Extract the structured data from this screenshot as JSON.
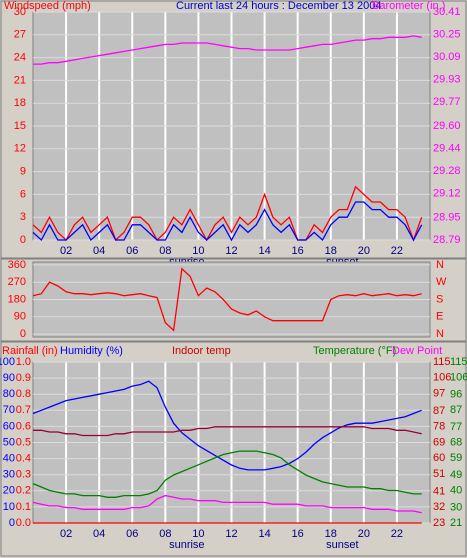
{
  "chart_data": [
    {
      "type": "line",
      "title": "Current last 24 hours : December 13 2004",
      "x": [
        0,
        0.5,
        1,
        1.5,
        2,
        2.5,
        3,
        3.5,
        4,
        4.5,
        5,
        5.5,
        6,
        6.5,
        7,
        7.5,
        8,
        8.5,
        9,
        9.5,
        10,
        10.5,
        11,
        11.5,
        12,
        12.5,
        13,
        13.5,
        14,
        14.5,
        15,
        15.5,
        16,
        16.5,
        17,
        17.5,
        18,
        18.5,
        19,
        19.5,
        20,
        20.5,
        21,
        21.5,
        22,
        22.5,
        23,
        23.5
      ],
      "xlim": [
        0,
        24
      ],
      "xticks": [
        {
          "value": 2,
          "label": "02"
        },
        {
          "value": 4,
          "label": "04"
        },
        {
          "value": 6,
          "label": "06"
        },
        {
          "value": 8,
          "label": "08"
        },
        {
          "value": 10,
          "label": "10"
        },
        {
          "value": 12,
          "label": "12"
        },
        {
          "value": 14,
          "label": "14"
        },
        {
          "value": 16,
          "label": "16"
        },
        {
          "value": 18,
          "label": "18"
        },
        {
          "value": 20,
          "label": "20"
        },
        {
          "value": 22,
          "label": "22"
        }
      ],
      "ylim": [
        0,
        30
      ],
      "yticks": [
        0,
        3,
        6,
        9,
        12,
        15,
        18,
        21,
        24,
        27,
        30
      ],
      "y2lim": [
        28.79,
        30.41
      ],
      "y2ticks": [
        28.79,
        28.95,
        29.12,
        29.28,
        29.44,
        {
          "value": 29.6,
          "label": "29.60"
        },
        29.77,
        29.93,
        30.09,
        30.25,
        30.41
      ],
      "grid": true,
      "annotations": [
        {
          "text": "sunrise",
          "x": 9.3
        },
        {
          "text": "sunset",
          "x": 18.7
        }
      ],
      "series": [
        {
          "name": "Windspeed (mph)",
          "color": "#ff0000",
          "axis": "y",
          "values": [
            2,
            1,
            3,
            1,
            0,
            2,
            3,
            1,
            2,
            3,
            0,
            1,
            3,
            3,
            2,
            0,
            1,
            3,
            2,
            4,
            2,
            0,
            2,
            3,
            1,
            3,
            2,
            3,
            6,
            3,
            2,
            3,
            0,
            0,
            2,
            1,
            3,
            4,
            4,
            7,
            6,
            5,
            5,
            4,
            4,
            3,
            0,
            3
          ]
        },
        {
          "color": "#0000ff",
          "axis": "y",
          "values": [
            1,
            0,
            2,
            0,
            0,
            1,
            2,
            0,
            1,
            2,
            0,
            0,
            2,
            2,
            1,
            0,
            0,
            2,
            1,
            3,
            1,
            0,
            1,
            2,
            0,
            2,
            1,
            2,
            4,
            2,
            1,
            2,
            0,
            0,
            1,
            0,
            2,
            3,
            3,
            5,
            5,
            4,
            4,
            3,
            3,
            2,
            0,
            2
          ]
        },
        {
          "name": "Barometer (in.)",
          "color": "#ff00ff",
          "axis": "y2",
          "values": [
            30.04,
            30.04,
            30.05,
            30.05,
            30.06,
            30.07,
            30.08,
            30.09,
            30.1,
            30.11,
            30.12,
            30.13,
            30.14,
            30.15,
            30.16,
            30.17,
            30.18,
            30.18,
            30.19,
            30.19,
            30.19,
            30.19,
            30.18,
            30.17,
            30.16,
            30.15,
            30.15,
            30.14,
            30.14,
            30.14,
            30.14,
            30.14,
            30.15,
            30.16,
            30.17,
            30.18,
            30.18,
            30.19,
            30.2,
            30.21,
            30.21,
            30.22,
            30.22,
            30.23,
            30.23,
            30.23,
            30.24,
            30.23
          ]
        }
      ]
    },
    {
      "type": "line",
      "x": [
        0,
        0.5,
        1,
        1.5,
        2,
        2.5,
        3,
        3.5,
        4,
        4.5,
        5,
        5.5,
        6,
        6.5,
        7,
        7.5,
        8,
        8.5,
        9,
        9.5,
        10,
        10.5,
        11,
        11.5,
        12,
        12.5,
        13,
        13.5,
        14,
        14.5,
        15,
        15.5,
        16,
        16.5,
        17,
        17.5,
        18,
        18.5,
        19,
        19.5,
        20,
        20.5,
        21,
        21.5,
        22,
        22.5,
        23,
        23.5
      ],
      "xlim": [
        0,
        24
      ],
      "ylim": [
        -15,
        375
      ],
      "yticks": [
        0,
        90,
        180,
        270,
        360
      ],
      "y2lim": [
        -15,
        375
      ],
      "y2ticks": [
        {
          "value": 0,
          "label": "N"
        },
        {
          "value": 90,
          "label": "E"
        },
        {
          "value": 180,
          "label": "S"
        },
        {
          "value": 270,
          "label": "W"
        },
        {
          "value": 360,
          "label": "N"
        }
      ],
      "grid": true,
      "series": [
        {
          "color": "#ff0000",
          "axis": "y",
          "values": [
            200,
            210,
            270,
            250,
            220,
            210,
            210,
            205,
            210,
            215,
            210,
            200,
            205,
            210,
            200,
            190,
            60,
            20,
            340,
            300,
            200,
            240,
            220,
            180,
            130,
            110,
            100,
            120,
            90,
            70,
            70,
            70,
            70,
            70,
            70,
            70,
            180,
            200,
            205,
            200,
            210,
            200,
            205,
            210,
            200,
            205,
            200,
            210
          ]
        }
      ]
    },
    {
      "type": "line",
      "x": [
        0,
        0.5,
        1,
        1.5,
        2,
        2.5,
        3,
        3.5,
        4,
        4.5,
        5,
        5.5,
        6,
        6.5,
        7,
        7.5,
        8,
        8.5,
        9,
        9.5,
        10,
        10.5,
        11,
        11.5,
        12,
        12.5,
        13,
        13.5,
        14,
        14.5,
        15,
        15.5,
        16,
        16.5,
        17,
        17.5,
        18,
        18.5,
        19,
        19.5,
        20,
        20.5,
        21,
        21.5,
        22,
        22.5,
        23,
        23.5
      ],
      "xlim": [
        0,
        24
      ],
      "xticks": [
        {
          "value": 2,
          "label": "02"
        },
        {
          "value": 4,
          "label": "04"
        },
        {
          "value": 6,
          "label": "06"
        },
        {
          "value": 8,
          "label": "08"
        },
        {
          "value": 10,
          "label": "10"
        },
        {
          "value": 12,
          "label": "12"
        },
        {
          "value": 14,
          "label": "14"
        },
        {
          "value": 16,
          "label": "16"
        },
        {
          "value": 18,
          "label": "18"
        },
        {
          "value": 20,
          "label": "20"
        },
        {
          "value": 22,
          "label": "22"
        }
      ],
      "ylim": [
        0,
        100
      ],
      "yticks": [
        0,
        10,
        20,
        30,
        40,
        50,
        60,
        70,
        80,
        90,
        100
      ],
      "rain_lim": [
        0,
        1
      ],
      "rain_ticks": [
        {
          "value": 0,
          "label": "0.0"
        },
        {
          "value": 0.1,
          "label": "0.1"
        },
        {
          "value": 0.2,
          "label": "0.2"
        },
        {
          "value": 0.3,
          "label": "0.3"
        },
        {
          "value": 0.4,
          "label": "0.4"
        },
        {
          "value": 0.5,
          "label": "0.5"
        },
        {
          "value": 0.6,
          "label": "0.6"
        },
        {
          "value": 0.7,
          "label": "0.7"
        },
        {
          "value": 0.8,
          "label": "0.8"
        },
        {
          "value": 0.9,
          "label": "0.9"
        },
        {
          "value": 1,
          "label": "1.0"
        }
      ],
      "y2lim": [
        23,
        115
      ],
      "y2ticks": [
        23,
        32,
        41,
        51,
        60,
        69,
        78,
        87,
        97,
        106,
        115
      ],
      "y3lim": [
        21,
        115
      ],
      "y3ticks": [
        21,
        30,
        40,
        49,
        59,
        68,
        77,
        87,
        96,
        106,
        115
      ],
      "grid": true,
      "annotations": [
        {
          "text": "sunrise",
          "x": 9.3
        },
        {
          "text": "sunset",
          "x": 18.7
        }
      ],
      "series": [
        {
          "name": "Rainfall (in)",
          "color": "#ff0000",
          "axis": "rain",
          "values": [
            0,
            0,
            0,
            0,
            0,
            0,
            0,
            0,
            0,
            0,
            0,
            0,
            0,
            0,
            0,
            0,
            0,
            0,
            0,
            0,
            0,
            0,
            0,
            0,
            0,
            0,
            0,
            0,
            0,
            0,
            0,
            0,
            0,
            0,
            0,
            0,
            0,
            0,
            0,
            0,
            0,
            0,
            0,
            0,
            0,
            0,
            0,
            0
          ]
        },
        {
          "name": "Humidity (%)",
          "color": "#0000ff",
          "axis": "y",
          "values": [
            68,
            70,
            72,
            74,
            76,
            77,
            78,
            79,
            80,
            81,
            82,
            83,
            85,
            86,
            88,
            84,
            72,
            62,
            56,
            52,
            48,
            45,
            42,
            39,
            36,
            34,
            33,
            33,
            33,
            34,
            35,
            37,
            40,
            44,
            49,
            53,
            56,
            59,
            61,
            62,
            62,
            62,
            63,
            64,
            65,
            66,
            68,
            70
          ]
        },
        {
          "name": "Indoor temp",
          "color": "#990033",
          "axis": "y2",
          "values": [
            76,
            76,
            75,
            75,
            74,
            74,
            73,
            73,
            73,
            73,
            74,
            74,
            75,
            75,
            75,
            75,
            75,
            75,
            76,
            76,
            77,
            77,
            78,
            78,
            78,
            78,
            78,
            78,
            78,
            78,
            78,
            78,
            78,
            78,
            78,
            78,
            78,
            78,
            78,
            78,
            78,
            77,
            77,
            77,
            76,
            76,
            75,
            74
          ]
        },
        {
          "name": "Temperature (°F)",
          "color": "#008000",
          "axis": "y3",
          "values": [
            44,
            42,
            40,
            39,
            38,
            38,
            37,
            37,
            37,
            36,
            36,
            37,
            37,
            37,
            38,
            40,
            46,
            49,
            51,
            53,
            55,
            57,
            59,
            61,
            62,
            63,
            63,
            63,
            62,
            61,
            59,
            55,
            52,
            49,
            47,
            45,
            44,
            43,
            42,
            42,
            42,
            41,
            41,
            40,
            40,
            39,
            38,
            38
          ]
        },
        {
          "name": "Dew Point",
          "color": "#ff00ff",
          "axis": "y3",
          "values": [
            33,
            32,
            31,
            31,
            30,
            30,
            29,
            29,
            29,
            29,
            29,
            29,
            30,
            30,
            31,
            35,
            37,
            36,
            35,
            35,
            34,
            34,
            34,
            33,
            33,
            33,
            33,
            33,
            33,
            32,
            32,
            32,
            32,
            31,
            31,
            31,
            30,
            30,
            30,
            30,
            30,
            29,
            29,
            29,
            28,
            28,
            28,
            27
          ]
        }
      ]
    }
  ]
}
